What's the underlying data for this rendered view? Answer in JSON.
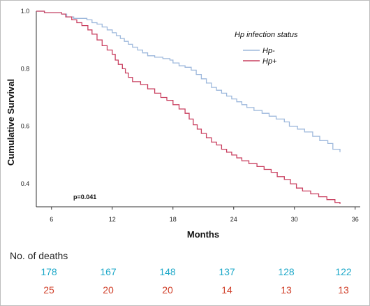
{
  "chart_data": {
    "type": "line",
    "step": true,
    "xlabel": "Months",
    "ylabel": "Cumulative Survival",
    "xlim": [
      4.5,
      36.5
    ],
    "ylim": [
      0.32,
      1.0
    ],
    "x_ticks": [
      6,
      12,
      18,
      24,
      30,
      36
    ],
    "y_ticks": [
      0.4,
      0.6,
      0.8,
      1.0
    ],
    "y_tick_labels": [
      "0.4",
      "0.6",
      "0.8",
      "1.0"
    ],
    "legend": {
      "title": "Hp infection status",
      "position": "top-right",
      "entries": [
        "Hp-",
        "Hp+"
      ]
    },
    "annotation": "p=0.041",
    "series": [
      {
        "name": "Hp-",
        "color": "#9db8dc",
        "points": [
          [
            4.5,
            1.0
          ],
          [
            5.3,
            0.995
          ],
          [
            7.0,
            0.99
          ],
          [
            7.5,
            0.98
          ],
          [
            8.2,
            0.975
          ],
          [
            9.5,
            0.97
          ],
          [
            10.0,
            0.96
          ],
          [
            10.5,
            0.955
          ],
          [
            11.0,
            0.945
          ],
          [
            11.5,
            0.935
          ],
          [
            12.0,
            0.925
          ],
          [
            12.4,
            0.915
          ],
          [
            12.8,
            0.905
          ],
          [
            13.2,
            0.895
          ],
          [
            13.6,
            0.885
          ],
          [
            14.0,
            0.875
          ],
          [
            14.5,
            0.865
          ],
          [
            15.0,
            0.855
          ],
          [
            15.5,
            0.845
          ],
          [
            16.2,
            0.84
          ],
          [
            17.0,
            0.835
          ],
          [
            17.7,
            0.83
          ],
          [
            18.0,
            0.82
          ],
          [
            18.6,
            0.81
          ],
          [
            19.2,
            0.805
          ],
          [
            19.8,
            0.795
          ],
          [
            20.3,
            0.78
          ],
          [
            20.8,
            0.765
          ],
          [
            21.3,
            0.75
          ],
          [
            21.8,
            0.735
          ],
          [
            22.3,
            0.725
          ],
          [
            22.8,
            0.715
          ],
          [
            23.3,
            0.705
          ],
          [
            23.8,
            0.695
          ],
          [
            24.3,
            0.685
          ],
          [
            24.8,
            0.675
          ],
          [
            25.3,
            0.665
          ],
          [
            26.0,
            0.655
          ],
          [
            26.8,
            0.645
          ],
          [
            27.5,
            0.635
          ],
          [
            28.2,
            0.625
          ],
          [
            29.0,
            0.615
          ],
          [
            29.5,
            0.6
          ],
          [
            30.3,
            0.59
          ],
          [
            31.0,
            0.58
          ],
          [
            31.8,
            0.565
          ],
          [
            32.5,
            0.55
          ],
          [
            33.3,
            0.54
          ],
          [
            33.8,
            0.52
          ],
          [
            34.5,
            0.51
          ]
        ]
      },
      {
        "name": "Hp+",
        "color": "#c94060",
        "points": [
          [
            4.5,
            1.0
          ],
          [
            5.3,
            0.995
          ],
          [
            7.0,
            0.99
          ],
          [
            7.4,
            0.98
          ],
          [
            8.0,
            0.97
          ],
          [
            8.5,
            0.96
          ],
          [
            9.0,
            0.95
          ],
          [
            9.6,
            0.935
          ],
          [
            10.0,
            0.92
          ],
          [
            10.5,
            0.9
          ],
          [
            11.0,
            0.88
          ],
          [
            11.5,
            0.865
          ],
          [
            12.0,
            0.85
          ],
          [
            12.3,
            0.83
          ],
          [
            12.6,
            0.815
          ],
          [
            13.0,
            0.8
          ],
          [
            13.3,
            0.785
          ],
          [
            13.6,
            0.77
          ],
          [
            14.0,
            0.755
          ],
          [
            14.8,
            0.745
          ],
          [
            15.5,
            0.73
          ],
          [
            16.2,
            0.715
          ],
          [
            16.8,
            0.7
          ],
          [
            17.4,
            0.69
          ],
          [
            18.0,
            0.675
          ],
          [
            18.6,
            0.66
          ],
          [
            19.2,
            0.645
          ],
          [
            19.6,
            0.625
          ],
          [
            20.0,
            0.605
          ],
          [
            20.4,
            0.59
          ],
          [
            20.8,
            0.575
          ],
          [
            21.3,
            0.56
          ],
          [
            21.8,
            0.545
          ],
          [
            22.3,
            0.535
          ],
          [
            22.8,
            0.52
          ],
          [
            23.3,
            0.51
          ],
          [
            23.8,
            0.5
          ],
          [
            24.3,
            0.49
          ],
          [
            24.8,
            0.48
          ],
          [
            25.5,
            0.47
          ],
          [
            26.3,
            0.46
          ],
          [
            27.0,
            0.45
          ],
          [
            27.7,
            0.44
          ],
          [
            28.3,
            0.425
          ],
          [
            29.0,
            0.415
          ],
          [
            29.6,
            0.4
          ],
          [
            30.2,
            0.385
          ],
          [
            30.8,
            0.375
          ],
          [
            31.6,
            0.365
          ],
          [
            32.4,
            0.355
          ],
          [
            33.2,
            0.345
          ],
          [
            34.0,
            0.335
          ],
          [
            34.5,
            0.33
          ]
        ]
      }
    ]
  },
  "deaths_table": {
    "heading": "No. of deaths",
    "rows": [
      {
        "group": "Hp-",
        "color": "#1fa9c9",
        "values": [
          "178",
          "167",
          "148",
          "137",
          "128",
          "122"
        ]
      },
      {
        "group": "Hp+",
        "color": "#d0402a",
        "values": [
          "25",
          "20",
          "20",
          "14",
          "13",
          "13"
        ]
      }
    ]
  }
}
